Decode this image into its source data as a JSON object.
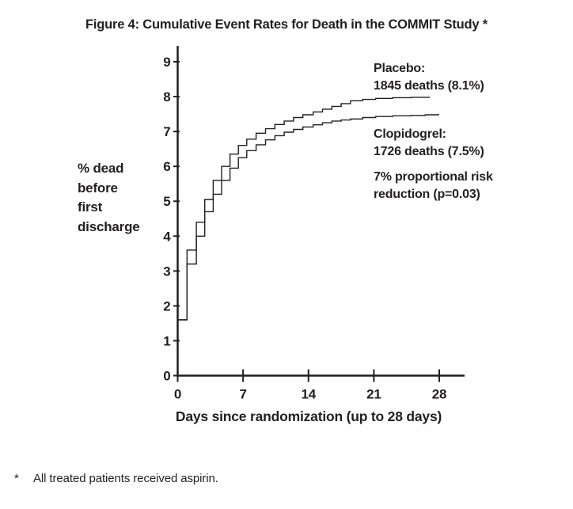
{
  "footnote": {
    "marker": "*",
    "text": "All treated patients received aspirin."
  },
  "chart_data": {
    "type": "line",
    "line_style": "step-after",
    "title": "Figure 4: Cumulative Event Rates for Death in the COMMIT Study *",
    "xlabel": "Days since randomization (up to 28 days)",
    "ylabel_lines": [
      "% dead",
      "before",
      "first",
      "discharge"
    ],
    "x_ticks": [
      0,
      7,
      14,
      21,
      28
    ],
    "y_ticks": [
      0,
      1,
      2,
      3,
      4,
      5,
      6,
      7,
      8,
      9
    ],
    "xlim": [
      0,
      30.5
    ],
    "ylim": [
      0,
      9.4
    ],
    "grid": false,
    "legend_position": "annotations-right",
    "line_color": "#231f20",
    "series": [
      {
        "name": "Placebo",
        "end_day": 27,
        "points": [
          [
            0,
            1.6
          ],
          [
            1.0,
            3.6
          ],
          [
            2.0,
            4.4
          ],
          [
            2.9,
            5.05
          ],
          [
            3.8,
            5.6
          ],
          [
            4.7,
            6.0
          ],
          [
            5.6,
            6.35
          ],
          [
            6.5,
            6.6
          ],
          [
            7.4,
            6.78
          ],
          [
            8.4,
            6.95
          ],
          [
            9.4,
            7.08
          ],
          [
            10.4,
            7.2
          ],
          [
            11.4,
            7.3
          ],
          [
            12.4,
            7.4
          ],
          [
            13.4,
            7.48
          ],
          [
            14.5,
            7.56
          ],
          [
            15.5,
            7.64
          ],
          [
            16.5,
            7.72
          ],
          [
            17.5,
            7.8
          ],
          [
            18.5,
            7.88
          ],
          [
            19.8,
            7.92
          ],
          [
            21.2,
            7.95
          ],
          [
            23,
            7.97
          ],
          [
            25,
            7.98
          ]
        ]
      },
      {
        "name": "Clopidogrel",
        "end_day": 28,
        "points": [
          [
            0,
            1.6
          ],
          [
            1.0,
            3.2
          ],
          [
            2.0,
            4.0
          ],
          [
            2.9,
            4.7
          ],
          [
            3.8,
            5.2
          ],
          [
            4.7,
            5.6
          ],
          [
            5.6,
            5.95
          ],
          [
            6.5,
            6.25
          ],
          [
            7.4,
            6.45
          ],
          [
            8.4,
            6.62
          ],
          [
            9.4,
            6.76
          ],
          [
            10.4,
            6.88
          ],
          [
            11.4,
            6.98
          ],
          [
            12.4,
            7.06
          ],
          [
            13.4,
            7.13
          ],
          [
            14.5,
            7.19
          ],
          [
            15.5,
            7.25
          ],
          [
            16.5,
            7.3
          ],
          [
            17.5,
            7.33
          ],
          [
            18.5,
            7.36
          ],
          [
            19.8,
            7.4
          ],
          [
            21.2,
            7.43
          ],
          [
            23,
            7.45
          ],
          [
            25,
            7.46
          ],
          [
            26.5,
            7.48
          ]
        ]
      }
    ],
    "annotations": {
      "placebo": {
        "line1": "Placebo:",
        "line2": "1845 deaths (8.1%)"
      },
      "clopidogrel": {
        "line1": "Clopidogrel:",
        "line2": "1726 deaths (7.5%)"
      },
      "risk": {
        "line1": "7% proportional risk",
        "line2": "reduction (p=0.03)"
      }
    }
  }
}
